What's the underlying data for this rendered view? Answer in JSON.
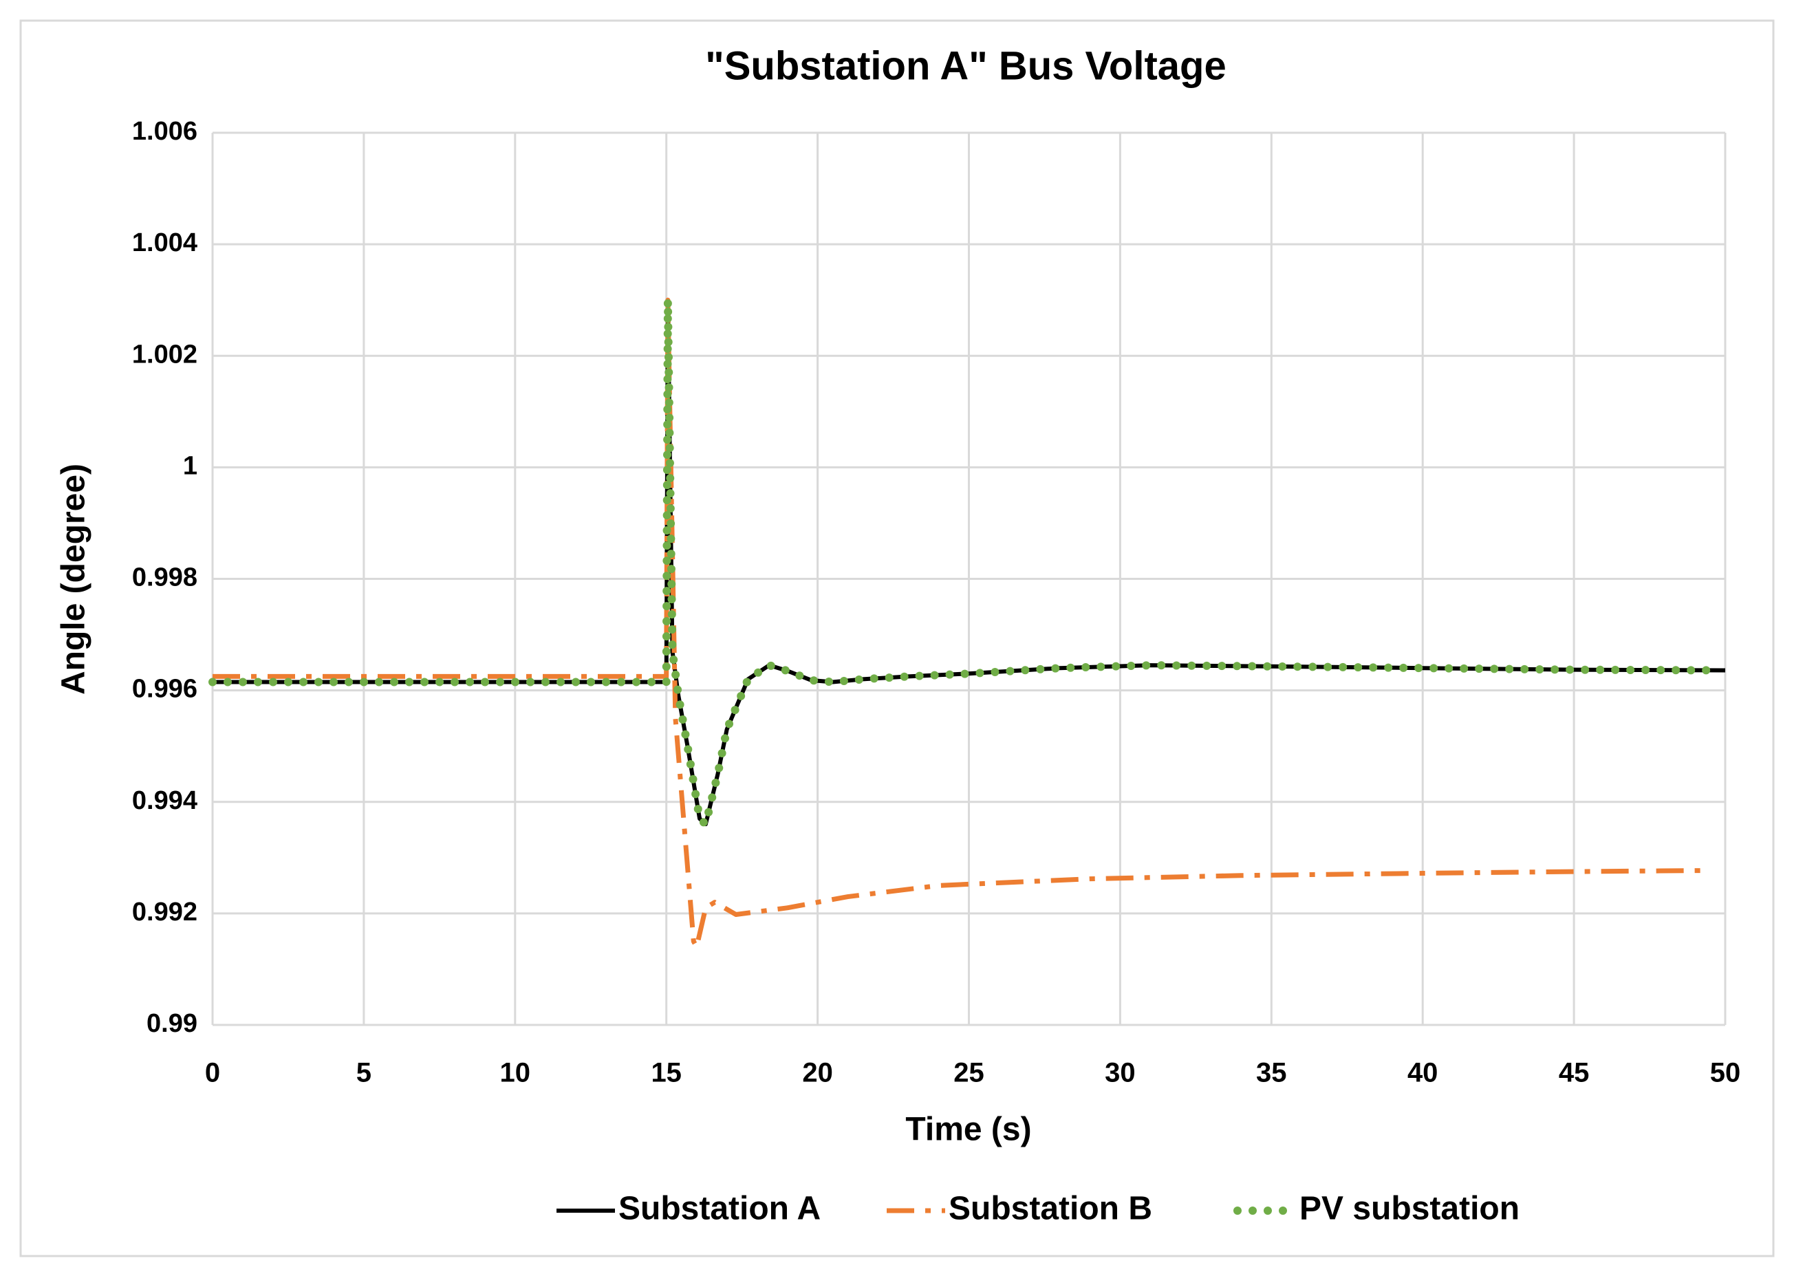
{
  "chart_data": {
    "type": "line",
    "title": "\"Substation A\" Bus Voltage",
    "x_label": "Time (s)",
    "y_label": "Angle (degree)",
    "xlim": [
      0,
      50
    ],
    "xticks": [
      0,
      5,
      10,
      15,
      20,
      25,
      30,
      35,
      40,
      45,
      50
    ],
    "ylim": [
      0.99,
      1.006
    ],
    "yticks": [
      0.99,
      0.992,
      0.994,
      0.996,
      0.998,
      1,
      1.002,
      1.004,
      1.006
    ],
    "grid": true,
    "legend": "bottom",
    "series": [
      {
        "name": "Substation A",
        "color": "#000000",
        "style": "solid",
        "x": [
          0,
          15,
          15.05,
          15.2,
          15.4,
          15.7,
          16.1,
          16.3,
          16.7,
          17,
          17.7,
          18.4,
          19,
          19.8,
          20.5,
          21.5,
          23,
          25,
          28,
          31,
          35,
          40,
          45,
          50
        ],
        "values": [
          0.99615,
          0.99615,
          1.003,
          0.9967,
          0.9959,
          0.995,
          0.9937,
          0.9936,
          0.9945,
          0.9953,
          0.9962,
          0.99645,
          0.99635,
          0.99618,
          0.99615,
          0.9962,
          0.99625,
          0.9963,
          0.9964,
          0.99645,
          0.99643,
          0.9964,
          0.99637,
          0.99636
        ]
      },
      {
        "name": "Substation B",
        "color": "#ed7d31",
        "style": "dashdot",
        "x": [
          0,
          15,
          15.05,
          15.3,
          15.6,
          15.9,
          16,
          16.3,
          16.6,
          17.3,
          19,
          21,
          24,
          29,
          34,
          40,
          45,
          49.5
        ],
        "values": [
          0.99625,
          0.99625,
          1.003,
          0.9955,
          0.9935,
          0.9915,
          0.9914,
          0.9921,
          0.9922,
          0.99198,
          0.9921,
          0.9923,
          0.9925,
          0.99262,
          0.99268,
          0.99272,
          0.99275,
          0.99277
        ]
      },
      {
        "name": "PV substation",
        "color": "#70ad47",
        "style": "dotted",
        "x": [
          0,
          15,
          15.05,
          15.2,
          15.4,
          15.7,
          16.1,
          16.3,
          16.7,
          17,
          17.7,
          18.4,
          19,
          19.8,
          20.5,
          21.5,
          23,
          25,
          28,
          31,
          35,
          40,
          45,
          49.5
        ],
        "values": [
          0.99615,
          0.99615,
          1.003,
          0.9967,
          0.9959,
          0.995,
          0.9937,
          0.9936,
          0.9945,
          0.9953,
          0.9962,
          0.99645,
          0.99635,
          0.99618,
          0.99615,
          0.9962,
          0.99625,
          0.9963,
          0.9964,
          0.99645,
          0.99643,
          0.9964,
          0.99637,
          0.99636
        ]
      }
    ]
  }
}
